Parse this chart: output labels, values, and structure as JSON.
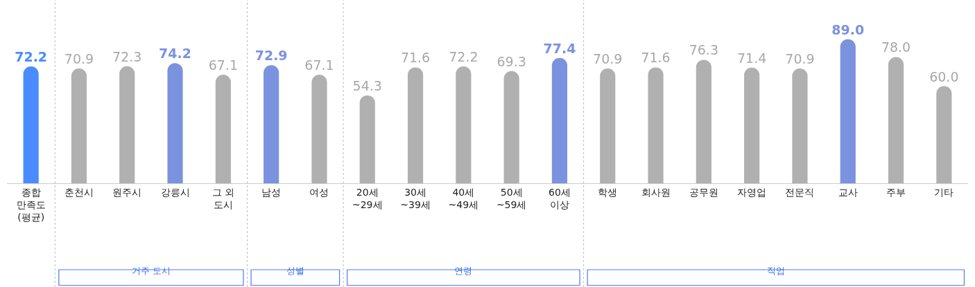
{
  "chart_data": {
    "type": "bar",
    "categories": [
      "종합\n만족도\n(평균)",
      "춘천시",
      "원주시",
      "강릉시",
      "그 외\n도시",
      "남성",
      "여성",
      "20세\n~29세",
      "30세\n~39세",
      "40세\n~49세",
      "50세\n~59세",
      "60세\n이상",
      "학생",
      "회사원",
      "공무원",
      "자영업",
      "전문직",
      "교사",
      "주부",
      "기타"
    ],
    "values": [
      72.2,
      70.9,
      72.3,
      74.2,
      67.1,
      72.9,
      67.1,
      54.3,
      71.6,
      72.2,
      69.3,
      77.4,
      70.9,
      71.6,
      76.3,
      71.4,
      70.9,
      89.0,
      78.0,
      60.0
    ],
    "colors": [
      "#4a8cff",
      "#b0b0b0",
      "#b0b0b0",
      "#7b93de",
      "#b0b0b0",
      "#7b93de",
      "#b0b0b0",
      "#b0b0b0",
      "#b0b0b0",
      "#b0b0b0",
      "#b0b0b0",
      "#7b93de",
      "#b0b0b0",
      "#b0b0b0",
      "#b0b0b0",
      "#b0b0b0",
      "#b0b0b0",
      "#7b93de",
      "#b0b0b0",
      "#b0b0b0"
    ],
    "value_labels": [
      "72.2",
      "70.9",
      "72.3",
      "74.2",
      "67.1",
      "72.9",
      "67.1",
      "54.3",
      "71.6",
      "72.2",
      "69.3",
      "77.4",
      "70.9",
      "71.6",
      "76.3",
      "71.4",
      "70.9",
      "89.0",
      "78.0",
      "60.0"
    ],
    "annotations": [
      "거주 도시",
      "성별",
      "연령",
      "직업"
    ]
  }
}
